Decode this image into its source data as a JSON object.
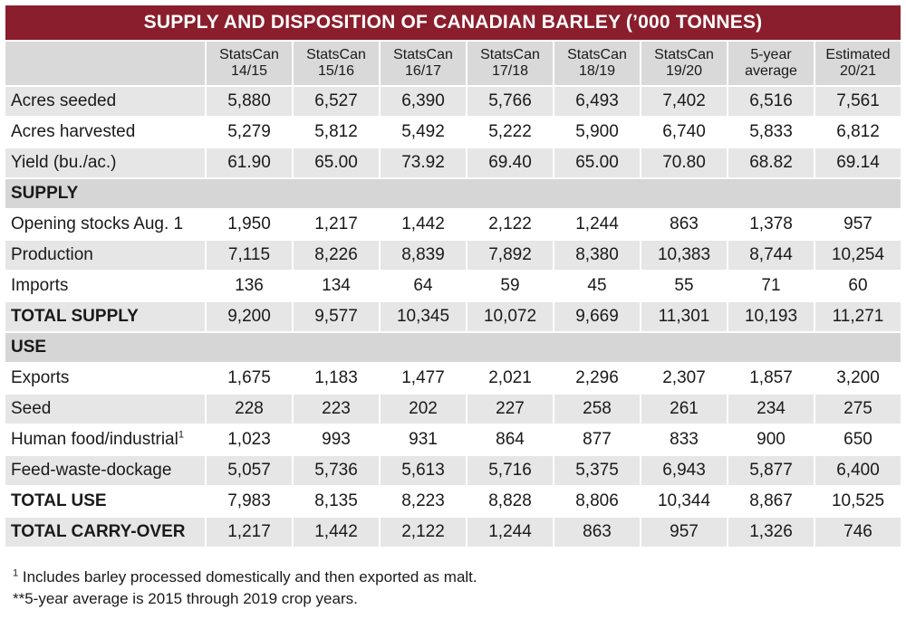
{
  "title": "SUPPLY AND DISPOSITION OF CANADIAN BARLEY (’000 TONNES)",
  "columns": [
    {
      "line1": "StatsCan",
      "line2": "14/15"
    },
    {
      "line1": "StatsCan",
      "line2": "15/16"
    },
    {
      "line1": "StatsCan",
      "line2": "16/17"
    },
    {
      "line1": "StatsCan",
      "line2": "17/18"
    },
    {
      "line1": "StatsCan",
      "line2": "18/19"
    },
    {
      "line1": "StatsCan",
      "line2": "19/20"
    },
    {
      "line1": "5-year",
      "line2": "average"
    },
    {
      "line1": "Estimated",
      "line2": "20/21"
    }
  ],
  "rows": [
    {
      "kind": "data",
      "label": "Acres seeded",
      "values": [
        "5,880",
        "6,527",
        "6,390",
        "5,766",
        "6,493",
        "7,402",
        "6,516",
        "7,561"
      ]
    },
    {
      "kind": "data",
      "label": "Acres harvested",
      "values": [
        "5,279",
        "5,812",
        "5,492",
        "5,222",
        "5,900",
        "6,740",
        "5,833",
        "6,812"
      ]
    },
    {
      "kind": "data",
      "label": "Yield (bu./ac.)",
      "values": [
        "61.90",
        "65.00",
        "73.92",
        "69.40",
        "65.00",
        "70.80",
        "68.82",
        "69.14"
      ]
    },
    {
      "kind": "section",
      "label": "SUPPLY"
    },
    {
      "kind": "data",
      "label": "Opening stocks Aug. 1",
      "values": [
        "1,950",
        "1,217",
        "1,442",
        "2,122",
        "1,244",
        "863",
        "1,378",
        "957"
      ]
    },
    {
      "kind": "data",
      "label": "Production",
      "values": [
        "7,115",
        "8,226",
        "8,839",
        "7,892",
        "8,380",
        "10,383",
        "8,744",
        "10,254"
      ]
    },
    {
      "kind": "data",
      "label": "Imports",
      "values": [
        "136",
        "134",
        "64",
        "59",
        "45",
        "55",
        "71",
        "60"
      ]
    },
    {
      "kind": "total",
      "label": "TOTAL SUPPLY",
      "values": [
        "9,200",
        "9,577",
        "10,345",
        "10,072",
        "9,669",
        "11,301",
        "10,193",
        "11,271"
      ]
    },
    {
      "kind": "section",
      "label": "USE"
    },
    {
      "kind": "data",
      "label": "Exports",
      "values": [
        "1,675",
        "1,183",
        "1,477",
        "2,021",
        "2,296",
        "2,307",
        "1,857",
        "3,200"
      ]
    },
    {
      "kind": "data",
      "label": "Seed",
      "values": [
        "228",
        "223",
        "202",
        "227",
        "258",
        "261",
        "234",
        "275"
      ]
    },
    {
      "kind": "data",
      "label": "Human food/industrial",
      "sup": "1",
      "values": [
        "1,023",
        "993",
        "931",
        "864",
        "877",
        "833",
        "900",
        "650"
      ]
    },
    {
      "kind": "data",
      "label": "Feed-waste-dockage",
      "values": [
        "5,057",
        "5,736",
        "5,613",
        "5,716",
        "5,375",
        "6,943",
        "5,877",
        "6,400"
      ]
    },
    {
      "kind": "total",
      "label": "TOTAL USE",
      "values": [
        "7,983",
        "8,135",
        "8,223",
        "8,828",
        "8,806",
        "10,344",
        "8,867",
        "10,525"
      ]
    },
    {
      "kind": "total",
      "label": "TOTAL CARRY-OVER",
      "values": [
        "1,217",
        "1,442",
        "2,122",
        "1,244",
        "863",
        "957",
        "1,326",
        "746"
      ]
    }
  ],
  "footnotes": {
    "note1_marker": "1",
    "note1_text": " Includes barley processed domestically and then exported as malt.",
    "note2_text": "**5-year average is 2015 through 2019 crop years."
  }
}
